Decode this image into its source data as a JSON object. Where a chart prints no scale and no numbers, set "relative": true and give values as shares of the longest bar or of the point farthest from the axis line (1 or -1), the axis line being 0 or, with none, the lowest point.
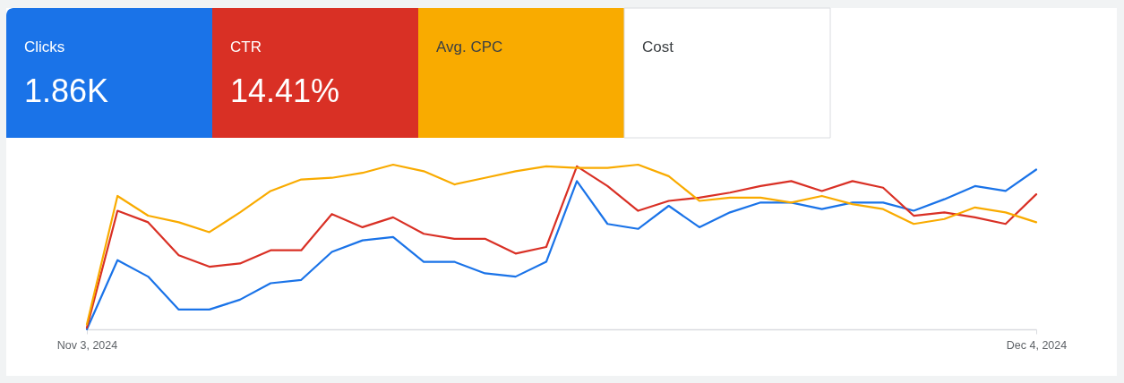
{
  "chart_data": {
    "type": "line",
    "relative": true,
    "annotations": [
      "Clicks",
      "1.86K",
      "CTR",
      "14.41%",
      "Avg. CPC",
      "Cost"
    ],
    "x": [
      "2024-11-03",
      "2024-11-04",
      "2024-11-05",
      "2024-11-06",
      "2024-11-07",
      "2024-11-08",
      "2024-11-09",
      "2024-11-10",
      "2024-11-11",
      "2024-11-12",
      "2024-11-13",
      "2024-11-14",
      "2024-11-15",
      "2024-11-16",
      "2024-11-17",
      "2024-11-18",
      "2024-11-19",
      "2024-11-20",
      "2024-11-21",
      "2024-11-22",
      "2024-11-23",
      "2024-11-24",
      "2024-11-25",
      "2024-11-26",
      "2024-11-27",
      "2024-11-28",
      "2024-11-29",
      "2024-11-30",
      "2024-12-01",
      "2024-12-02",
      "2024-12-03",
      "2024-12-04"
    ],
    "xlim": [
      "2024-11-03",
      "2024-12-04"
    ],
    "xticks": [
      {
        "value": "2024-11-03",
        "label": "Nov 3, 2024"
      },
      {
        "value": "2024-12-04",
        "label": "Dec 4, 2024"
      }
    ],
    "series": [
      {
        "color": "#1a73e8",
        "values": [
          0,
          0.42,
          0.32,
          0.12,
          0.12,
          0.18,
          0.28,
          0.3,
          0.47,
          0.54,
          0.56,
          0.41,
          0.41,
          0.34,
          0.32,
          0.41,
          0.9,
          0.64,
          0.61,
          0.75,
          0.62,
          0.71,
          0.77,
          0.77,
          0.73,
          0.77,
          0.77,
          0.72,
          0.79,
          0.87,
          0.84,
          0.97
        ]
      },
      {
        "color": "#d93025",
        "values": [
          0.01,
          0.72,
          0.65,
          0.45,
          0.38,
          0.4,
          0.48,
          0.48,
          0.7,
          0.62,
          0.68,
          0.58,
          0.55,
          0.55,
          0.46,
          0.5,
          0.99,
          0.87,
          0.72,
          0.78,
          0.8,
          0.83,
          0.87,
          0.9,
          0.84,
          0.9,
          0.86,
          0.69,
          0.71,
          0.68,
          0.64,
          0.82
        ]
      },
      {
        "color": "#f9ab00",
        "values": [
          0.03,
          0.81,
          0.69,
          0.65,
          0.59,
          0.71,
          0.84,
          0.91,
          0.92,
          0.95,
          1,
          0.96,
          0.88,
          0.92,
          0.96,
          0.99,
          0.98,
          0.98,
          1,
          0.93,
          0.78,
          0.8,
          0.8,
          0.77,
          0.81,
          0.76,
          0.73,
          0.64,
          0.67,
          0.74,
          0.71,
          0.65
        ]
      }
    ]
  }
}
